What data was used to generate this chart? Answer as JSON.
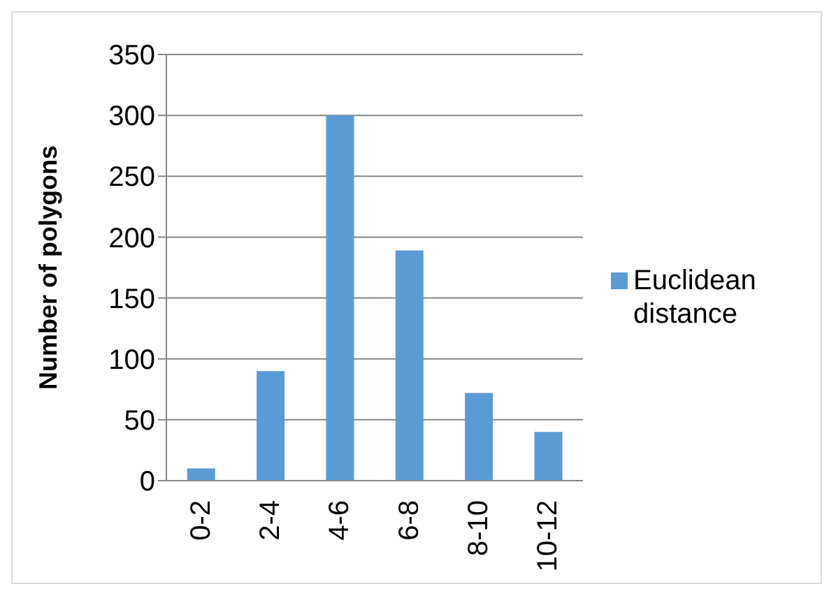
{
  "chart_data": {
    "type": "bar",
    "ylabel": "Number of polygons",
    "categories": [
      "0-2",
      "2-4",
      "4-6",
      "6-8",
      "8-10",
      "10-12"
    ],
    "series": [
      {
        "name": "Euclidean distance",
        "color": "#5b9bd5",
        "values": [
          10,
          90,
          300,
          189,
          72,
          40
        ]
      }
    ],
    "ylim": [
      0,
      350
    ],
    "yticks": [
      0,
      50,
      100,
      150,
      200,
      250,
      300,
      350
    ],
    "grid": "y",
    "legend": "right"
  }
}
